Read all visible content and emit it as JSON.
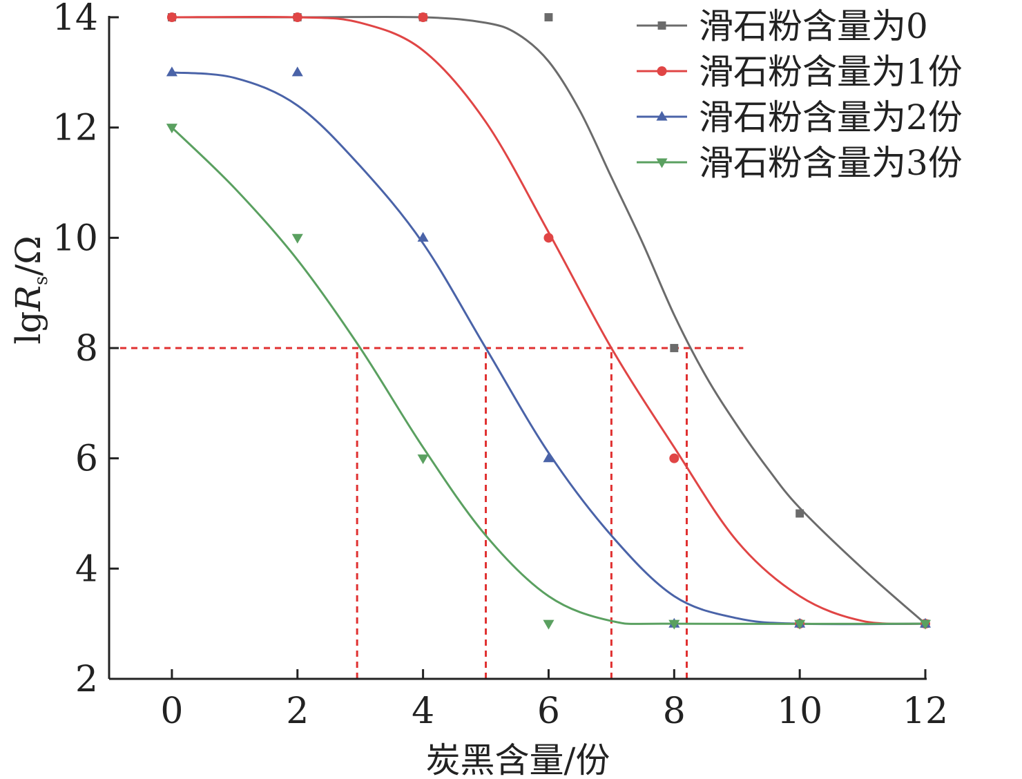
{
  "chart_data": {
    "type": "line",
    "xlabel": "炭黑含量/份",
    "ylabel": {
      "prefix": "lg",
      "var": "R",
      "sub": "s",
      "unit": "/Ω"
    },
    "xlim": [
      -1,
      12
    ],
    "ylim": [
      2,
      14
    ],
    "x_ticks": [
      "0",
      "2",
      "4",
      "6",
      "8",
      "10",
      "12"
    ],
    "y_ticks": [
      "2",
      "4",
      "6",
      "8",
      "10",
      "12",
      "14"
    ],
    "x": [
      0,
      2,
      4,
      6,
      8,
      10,
      12
    ],
    "legend_position": "top-right",
    "series": [
      {
        "name": "滑石粉含量为0",
        "color": "#6b6b6b",
        "marker": "square",
        "values": [
          14,
          14,
          14,
          14,
          8,
          5,
          3
        ],
        "fit": [
          [
            0,
            14
          ],
          [
            2,
            14
          ],
          [
            4,
            14
          ],
          [
            5,
            13.9
          ],
          [
            5.5,
            13.7
          ],
          [
            6,
            13.2
          ],
          [
            6.5,
            12.3
          ],
          [
            7,
            11.1
          ],
          [
            7.5,
            9.9
          ],
          [
            8,
            8.6
          ],
          [
            8.5,
            7.5
          ],
          [
            9,
            6.6
          ],
          [
            9.5,
            5.8
          ],
          [
            10,
            5.1
          ],
          [
            11,
            4.0
          ],
          [
            12,
            3.0
          ]
        ]
      },
      {
        "name": "滑石粉含量为1份",
        "color": "#e04545",
        "marker": "circle",
        "values": [
          14,
          14,
          14,
          10,
          6,
          3,
          3
        ],
        "fit": [
          [
            0,
            14
          ],
          [
            2,
            14
          ],
          [
            3,
            13.9
          ],
          [
            4,
            13.4
          ],
          [
            5,
            12.1
          ],
          [
            6,
            10.1
          ],
          [
            7,
            8.0
          ],
          [
            8,
            6.2
          ],
          [
            9,
            4.5
          ],
          [
            10,
            3.5
          ],
          [
            11,
            3.05
          ],
          [
            12,
            3.0
          ]
        ]
      },
      {
        "name": "滑石粉含量为2份",
        "color": "#4a63a8",
        "marker": "triangle-up",
        "values": [
          13,
          13,
          10,
          6,
          3,
          3,
          3
        ],
        "fit": [
          [
            0,
            13
          ],
          [
            1,
            12.9
          ],
          [
            2,
            12.4
          ],
          [
            3,
            11.3
          ],
          [
            4,
            9.9
          ],
          [
            5,
            8.0
          ],
          [
            6,
            6.1
          ],
          [
            7,
            4.6
          ],
          [
            8,
            3.5
          ],
          [
            9,
            3.1
          ],
          [
            10,
            3.0
          ],
          [
            12,
            3.0
          ]
        ]
      },
      {
        "name": "滑石粉含量为3份",
        "color": "#5aa060",
        "marker": "triangle-down",
        "values": [
          12,
          10,
          6,
          3,
          3,
          3,
          3
        ],
        "fit": [
          [
            0,
            12
          ],
          [
            1,
            10.9
          ],
          [
            2,
            9.6
          ],
          [
            3,
            8.0
          ],
          [
            4,
            6.2
          ],
          [
            5,
            4.6
          ],
          [
            6,
            3.5
          ],
          [
            7,
            3.05
          ],
          [
            8,
            3.0
          ],
          [
            12,
            3.0
          ]
        ]
      }
    ],
    "reference_lines": {
      "color": "#e03030",
      "horizontal": {
        "y": 8,
        "x_from": -1,
        "x_to": 9.1
      },
      "vertical": [
        {
          "x": 2.95,
          "y_from": 2,
          "y_to": 8
        },
        {
          "x": 5.0,
          "y_from": 2,
          "y_to": 8
        },
        {
          "x": 7.0,
          "y_from": 2,
          "y_to": 8
        },
        {
          "x": 8.2,
          "y_from": 2,
          "y_to": 8
        }
      ]
    }
  }
}
